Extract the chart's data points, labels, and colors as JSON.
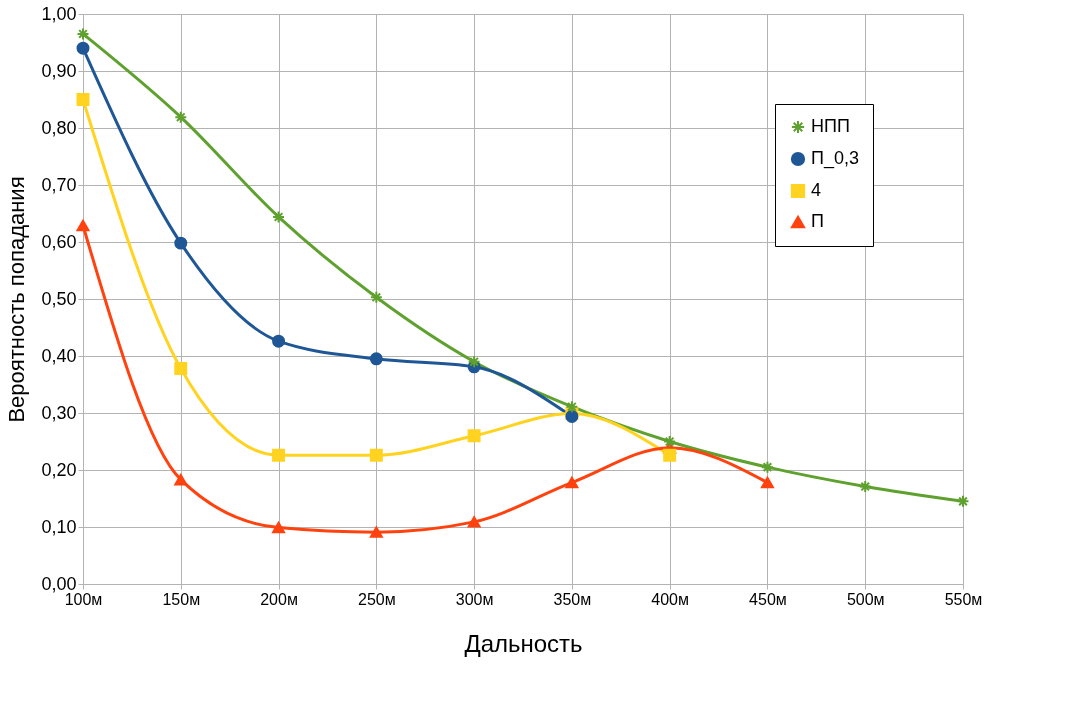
{
  "chart_data": {
    "type": "line",
    "xlabel": "Дальность",
    "ylabel": "Вероятность попадания",
    "categories": [
      "100м",
      "150м",
      "200м",
      "250м",
      "300м",
      "350м",
      "400м",
      "450м",
      "500м",
      "550м"
    ],
    "series": [
      {
        "name": "НПП",
        "color": "#5fa12e",
        "marker": "cross",
        "values": [
          0.965,
          0.819,
          0.644,
          0.503,
          0.39,
          0.311,
          0.25,
          0.205,
          0.171,
          0.145
        ]
      },
      {
        "name": "П_0,3",
        "color": "#1f5796",
        "marker": "circle",
        "values": [
          0.94,
          0.598,
          0.426,
          0.395,
          0.381,
          0.294,
          null,
          null,
          null,
          null
        ]
      },
      {
        "name": "4",
        "color": "#ffd320",
        "marker": "square",
        "values": [
          0.85,
          0.378,
          0.226,
          0.226,
          0.26,
          0.299,
          0.226,
          null,
          null,
          null
        ]
      },
      {
        "name": "П",
        "color": "#ff420e",
        "marker": "triangle",
        "values": [
          0.629,
          0.183,
          0.099,
          0.091,
          0.109,
          0.178,
          0.239,
          0.178,
          null,
          null
        ]
      }
    ],
    "ylim": [
      0,
      1
    ],
    "yticks": [
      {
        "value": 0,
        "label": "0,00"
      },
      {
        "value": 0.1,
        "label": "0,10"
      },
      {
        "value": 0.2,
        "label": "0,20"
      },
      {
        "value": 0.3,
        "label": "0,30"
      },
      {
        "value": 0.4,
        "label": "0,40"
      },
      {
        "value": 0.5,
        "label": "0,50"
      },
      {
        "value": 0.6,
        "label": "0,60"
      },
      {
        "value": 0.7,
        "label": "0,70"
      },
      {
        "value": 0.8,
        "label": "0,80"
      },
      {
        "value": 0.9,
        "label": "0,90"
      },
      {
        "value": 1,
        "label": "1,00"
      }
    ],
    "grid": true,
    "legend": "top right",
    "line_style": "solid"
  }
}
